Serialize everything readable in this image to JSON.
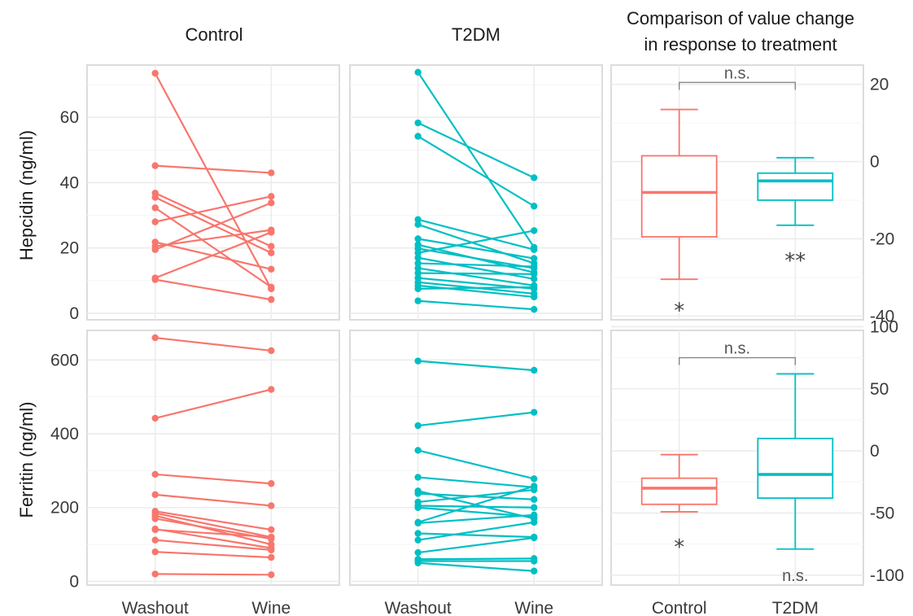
{
  "colors": {
    "control": "#F8766D",
    "t2dm": "#00BFC4"
  },
  "chart_data": [
    {
      "type": "line",
      "panel": "hepcidin-control",
      "title": "Control",
      "ylabel": "Hepcidin (ng/ml)",
      "categories": [
        "Washout",
        "Wine"
      ],
      "ylim": [
        -2,
        76
      ],
      "yticks": [
        0,
        20,
        40,
        60
      ],
      "series": [
        {
          "values": [
            73.5,
            7.5
          ]
        },
        {
          "values": [
            45.2,
            43.0
          ]
        },
        {
          "values": [
            36.8,
            20.5
          ]
        },
        {
          "values": [
            35.5,
            18.5
          ]
        },
        {
          "values": [
            32.3,
            8.0
          ]
        },
        {
          "values": [
            28.0,
            35.8
          ]
        },
        {
          "values": [
            21.8,
            13.5
          ]
        },
        {
          "values": [
            20.5,
            25.5
          ]
        },
        {
          "values": [
            19.5,
            33.8
          ]
        },
        {
          "values": [
            10.8,
            24.8
          ]
        },
        {
          "values": [
            10.3,
            4.2
          ]
        }
      ]
    },
    {
      "type": "line",
      "panel": "hepcidin-t2dm",
      "title": "T2DM",
      "categories": [
        "Washout",
        "Wine"
      ],
      "ylim": [
        -2,
        76
      ],
      "yticks": [
        0,
        20,
        40,
        60
      ],
      "series": [
        {
          "values": [
            73.8,
            20.2
          ]
        },
        {
          "values": [
            58.3,
            41.5
          ]
        },
        {
          "values": [
            54.2,
            32.8
          ]
        },
        {
          "values": [
            28.7,
            19.5
          ]
        },
        {
          "values": [
            27.2,
            15.3
          ]
        },
        {
          "values": [
            22.8,
            16.8
          ]
        },
        {
          "values": [
            21.0,
            12.5
          ]
        },
        {
          "values": [
            19.8,
            13.8
          ]
        },
        {
          "values": [
            18.5,
            25.3
          ]
        },
        {
          "values": [
            17.0,
            10.5
          ]
        },
        {
          "values": [
            15.3,
            14.3
          ]
        },
        {
          "values": [
            13.8,
            8.5
          ]
        },
        {
          "values": [
            12.3,
            12.0
          ]
        },
        {
          "values": [
            10.8,
            7.5
          ]
        },
        {
          "values": [
            9.5,
            6.0
          ]
        },
        {
          "values": [
            8.5,
            5.0
          ]
        },
        {
          "values": [
            7.5,
            8.0
          ]
        },
        {
          "values": [
            3.8,
            1.2
          ]
        }
      ]
    },
    {
      "type": "box",
      "panel": "hepcidin-change",
      "title_lines": [
        "Comparison of value change",
        "in response to treatment"
      ],
      "categories": [
        "Control",
        "T2DM"
      ],
      "ylim": [
        -41,
        25
      ],
      "yticks": [
        20,
        0,
        -20,
        -40
      ],
      "boxes": [
        {
          "name": "Control",
          "whisker_low": -30.5,
          "q1": -19.5,
          "median": -8.0,
          "q3": 1.5,
          "whisker_high": 13.5
        },
        {
          "name": "T2DM",
          "whisker_low": -16.5,
          "q1": -10.0,
          "median": -5.0,
          "q3": -3.0,
          "whisker_high": 1.0
        }
      ],
      "comparison_label": "n.s.",
      "comparison_y": 20.5,
      "box_labels": [
        {
          "text": "*",
          "value": -37.5
        },
        {
          "text": "**",
          "value": -24.5
        }
      ]
    },
    {
      "type": "line",
      "panel": "ferritin-control",
      "categories": [
        "Washout",
        "Wine"
      ],
      "ylabel": "Ferritin (ng/ml)",
      "ylim": [
        -10,
        680
      ],
      "yticks": [
        0,
        200,
        400,
        600
      ],
      "series": [
        {
          "values": [
            660,
            625
          ]
        },
        {
          "values": [
            442,
            520
          ]
        },
        {
          "values": [
            290,
            265
          ]
        },
        {
          "values": [
            235,
            205
          ]
        },
        {
          "values": [
            190,
            140
          ]
        },
        {
          "values": [
            185,
            120
          ]
        },
        {
          "values": [
            178,
            100
          ]
        },
        {
          "values": [
            170,
            115
          ]
        },
        {
          "values": [
            142,
            90
          ]
        },
        {
          "values": [
            140,
            120
          ]
        },
        {
          "values": [
            112,
            85
          ]
        },
        {
          "values": [
            80,
            65
          ]
        },
        {
          "values": [
            20,
            18
          ]
        }
      ]
    },
    {
      "type": "line",
      "panel": "ferritin-t2dm",
      "categories": [
        "Washout",
        "Wine"
      ],
      "ylim": [
        -10,
        680
      ],
      "yticks": [
        0,
        200,
        400,
        600
      ],
      "series": [
        {
          "values": [
            597,
            572
          ]
        },
        {
          "values": [
            422,
            458
          ]
        },
        {
          "values": [
            355,
            278
          ]
        },
        {
          "values": [
            282,
            255
          ]
        },
        {
          "values": [
            245,
            170
          ]
        },
        {
          "values": [
            238,
            222
          ]
        },
        {
          "values": [
            215,
            248
          ]
        },
        {
          "values": [
            205,
            200
          ]
        },
        {
          "values": [
            200,
            175
          ]
        },
        {
          "values": [
            160,
            258
          ]
        },
        {
          "values": [
            158,
            180
          ]
        },
        {
          "values": [
            130,
            120
          ]
        },
        {
          "values": [
            112,
            160
          ]
        },
        {
          "values": [
            78,
            118
          ]
        },
        {
          "values": [
            60,
            62
          ]
        },
        {
          "values": [
            55,
            55
          ]
        },
        {
          "values": [
            50,
            28
          ]
        }
      ]
    },
    {
      "type": "box",
      "panel": "ferritin-change",
      "categories": [
        "Control",
        "T2DM"
      ],
      "ylim": [
        -108,
        97
      ],
      "yticks": [
        100,
        50,
        0,
        -50,
        -100
      ],
      "boxes": [
        {
          "name": "Control",
          "whisker_low": -49,
          "q1": -43,
          "median": -30,
          "q3": -22,
          "whisker_high": -3
        },
        {
          "name": "T2DM",
          "whisker_low": -79,
          "q1": -38,
          "median": -19,
          "q3": 10,
          "whisker_high": 62
        }
      ],
      "comparison_label": "n.s.",
      "comparison_y": 75,
      "box_labels": [
        {
          "text": "*",
          "value": -74
        },
        {
          "text": "n.s.",
          "value": -100
        }
      ]
    }
  ]
}
